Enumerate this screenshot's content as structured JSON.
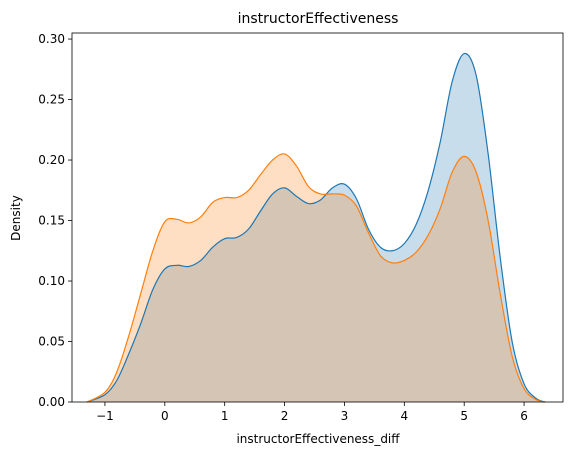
{
  "chart_data": {
    "type": "area",
    "title": "instructorEffectiveness",
    "xlabel": "instructorEffectiveness_diff",
    "ylabel": "Density",
    "xlim": [
      -1.55,
      6.65
    ],
    "ylim": [
      0,
      0.305
    ],
    "x_ticks": [
      -1,
      0,
      1,
      2,
      3,
      4,
      5,
      6
    ],
    "x_tick_labels": [
      "−1",
      "0",
      "1",
      "2",
      "3",
      "4",
      "5",
      "6"
    ],
    "y_ticks": [
      0,
      0.05,
      0.1,
      0.15,
      0.2,
      0.25,
      0.3
    ],
    "y_tick_labels": [
      "0.00",
      "0.05",
      "0.10",
      "0.15",
      "0.20",
      "0.25",
      "0.30"
    ],
    "grid": false,
    "legend": false,
    "series": [
      {
        "color": "#1f77b4",
        "fill_opacity": 0.25,
        "x": [
          -1.3,
          -1.0,
          -0.8,
          -0.6,
          -0.4,
          -0.2,
          0.0,
          0.2,
          0.4,
          0.6,
          0.8,
          1.0,
          1.2,
          1.4,
          1.6,
          1.8,
          2.0,
          2.2,
          2.4,
          2.6,
          2.8,
          3.0,
          3.2,
          3.4,
          3.6,
          3.8,
          4.0,
          4.2,
          4.4,
          4.6,
          4.8,
          5.0,
          5.2,
          5.4,
          5.6,
          5.8,
          6.0,
          6.2,
          6.35
        ],
        "y": [
          0.0,
          0.006,
          0.018,
          0.04,
          0.065,
          0.093,
          0.11,
          0.113,
          0.112,
          0.117,
          0.128,
          0.135,
          0.136,
          0.143,
          0.158,
          0.172,
          0.177,
          0.17,
          0.164,
          0.167,
          0.177,
          0.18,
          0.168,
          0.143,
          0.128,
          0.125,
          0.131,
          0.147,
          0.175,
          0.215,
          0.265,
          0.288,
          0.27,
          0.205,
          0.12,
          0.05,
          0.015,
          0.003,
          0.0
        ]
      },
      {
        "color": "#ff7f0e",
        "fill_opacity": 0.25,
        "x": [
          -1.3,
          -1.0,
          -0.8,
          -0.6,
          -0.4,
          -0.2,
          0.0,
          0.2,
          0.4,
          0.6,
          0.8,
          1.0,
          1.2,
          1.4,
          1.6,
          1.8,
          2.0,
          2.2,
          2.4,
          2.6,
          2.8,
          3.0,
          3.2,
          3.4,
          3.6,
          3.8,
          4.0,
          4.2,
          4.4,
          4.6,
          4.8,
          5.0,
          5.2,
          5.4,
          5.6,
          5.8,
          6.0,
          6.2,
          6.35
        ],
        "y": [
          0.0,
          0.008,
          0.025,
          0.055,
          0.09,
          0.125,
          0.149,
          0.151,
          0.148,
          0.153,
          0.165,
          0.169,
          0.169,
          0.175,
          0.188,
          0.2,
          0.205,
          0.195,
          0.178,
          0.172,
          0.172,
          0.171,
          0.162,
          0.14,
          0.121,
          0.115,
          0.117,
          0.124,
          0.138,
          0.16,
          0.19,
          0.203,
          0.19,
          0.15,
          0.09,
          0.038,
          0.011,
          0.002,
          0.0
        ]
      }
    ]
  }
}
